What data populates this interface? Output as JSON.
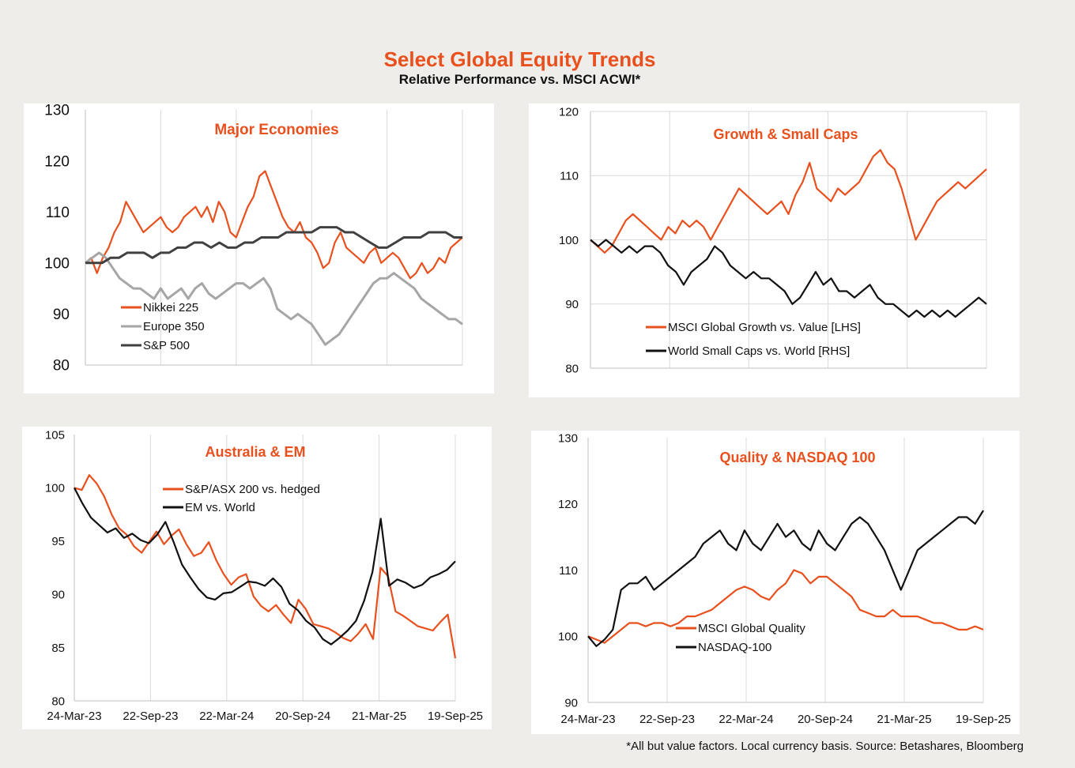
{
  "title": "Select Global Equity Trends",
  "subtitle": "Relative Performance vs. MSCI ACWI*",
  "footnote": "*All but value factors. Local currency  basis.  Source: Betashares, Bloomberg",
  "colors": {
    "orange": "#e8501e",
    "grey": "#a6a6a6",
    "dark": "#404040",
    "black": "#111111"
  },
  "chart_data": [
    {
      "type": "line",
      "title": "Major Economies",
      "ylim": [
        80,
        130
      ],
      "yticks": [
        80,
        90,
        100,
        110,
        120,
        130
      ],
      "xticks": [
        "",
        "",
        "",
        "",
        "",
        ""
      ],
      "grid": "vertical",
      "legend": "bottom-left",
      "series": [
        {
          "name": "Nikkei 225",
          "color": "orange",
          "values": [
            100,
            101,
            98,
            101,
            103,
            106,
            108,
            112,
            110,
            108,
            106,
            107,
            108,
            109,
            107,
            106,
            107,
            109,
            110,
            111,
            109,
            111,
            108,
            112,
            110,
            106,
            105,
            108,
            111,
            113,
            117,
            118,
            115,
            112,
            109,
            107,
            106,
            108,
            105,
            104,
            102,
            99,
            100,
            104,
            106,
            103,
            102,
            101,
            100,
            102,
            103,
            100,
            101,
            102,
            101,
            99,
            97,
            98,
            100,
            98,
            99,
            101,
            100,
            103,
            104,
            105
          ]
        },
        {
          "name": "Europe 350",
          "color": "grey",
          "values": [
            100,
            101,
            102,
            101,
            99,
            97,
            96,
            95,
            95,
            94,
            93,
            95,
            93,
            94,
            95,
            93,
            95,
            96,
            94,
            93,
            94,
            95,
            96,
            96,
            95,
            96,
            97,
            95,
            91,
            90,
            89,
            90,
            89,
            88,
            86,
            84,
            85,
            86,
            88,
            90,
            92,
            94,
            96,
            97,
            97,
            98,
            97,
            96,
            95,
            93,
            92,
            91,
            90,
            89,
            89,
            88
          ]
        },
        {
          "name": "S&P 500",
          "color": "dark",
          "values": [
            100,
            100,
            100,
            101,
            101,
            102,
            102,
            102,
            101,
            102,
            102,
            103,
            103,
            104,
            104,
            103,
            104,
            103,
            103,
            104,
            104,
            105,
            105,
            105,
            106,
            106,
            106,
            106,
            107,
            107,
            107,
            106,
            106,
            105,
            104,
            103,
            103,
            104,
            105,
            105,
            105,
            106,
            106,
            106,
            105,
            105
          ]
        }
      ]
    },
    {
      "type": "line",
      "title": "Growth & Small Caps",
      "ylim": [
        80,
        120
      ],
      "yticks": [
        80,
        90,
        100,
        110,
        120
      ],
      "xticks": [
        "",
        "",
        "",
        "",
        "",
        ""
      ],
      "grid": "both",
      "legend": "bottom-left",
      "series": [
        {
          "name": "MSCI Global Growth vs. Value [LHS]",
          "color": "orange",
          "values": [
            100,
            99,
            98,
            99,
            101,
            103,
            104,
            103,
            102,
            101,
            100,
            102,
            101,
            103,
            102,
            103,
            102,
            100,
            102,
            104,
            106,
            108,
            107,
            106,
            105,
            104,
            105,
            106,
            104,
            107,
            109,
            112,
            108,
            107,
            106,
            108,
            107,
            108,
            109,
            111,
            113,
            114,
            112,
            111,
            108,
            104,
            100,
            102,
            104,
            106,
            107,
            108,
            109,
            108,
            109,
            110,
            111
          ]
        },
        {
          "name": "World Small Caps vs. World [RHS]",
          "color": "black",
          "values": [
            100,
            99,
            100,
            99,
            98,
            99,
            98,
            99,
            99,
            98,
            96,
            95,
            93,
            95,
            96,
            97,
            99,
            98,
            96,
            95,
            94,
            95,
            94,
            94,
            93,
            92,
            90,
            91,
            93,
            95,
            93,
            94,
            92,
            92,
            91,
            92,
            93,
            91,
            90,
            90,
            89,
            88,
            89,
            88,
            89,
            88,
            89,
            88,
            89,
            90,
            91,
            90
          ]
        }
      ]
    },
    {
      "type": "line",
      "title": "Australia & EM",
      "ylim": [
        80,
        105
      ],
      "yticks": [
        80,
        85,
        90,
        95,
        100,
        105
      ],
      "xticks": [
        "24-Mar-23",
        "22-Sep-23",
        "22-Mar-24",
        "20-Sep-24",
        "21-Mar-25",
        "19-Sep-25"
      ],
      "grid": "vertical",
      "legend": "top-center",
      "series": [
        {
          "name": "S&P/ASX 200 vs. hedged",
          "color": "orange",
          "values": [
            100,
            99.8,
            101.2,
            100.4,
            99.2,
            97.5,
            96.2,
            95.6,
            94.5,
            93.9,
            94.9,
            95.9,
            94.7,
            95.5,
            96.1,
            94.7,
            93.6,
            93.9,
            94.9,
            93.2,
            91.9,
            90.9,
            91.6,
            91.9,
            89.8,
            88.9,
            88.4,
            89.0,
            88.1,
            87.3,
            89.5,
            88.6,
            87.2,
            87.0,
            86.8,
            86.4,
            85.9,
            85.6,
            86.3,
            87.2,
            85.8,
            92.5,
            91.7,
            88.4,
            88.0,
            87.5,
            87.0,
            86.8,
            86.6,
            87.4,
            88.1,
            84.0
          ]
        },
        {
          "name": "EM vs. World",
          "color": "black",
          "values": [
            100,
            98.5,
            97.2,
            96.5,
            95.8,
            96.2,
            95.3,
            95.7,
            95.1,
            94.8,
            95.6,
            96.8,
            94.9,
            92.8,
            91.6,
            90.5,
            89.7,
            89.5,
            90.1,
            90.2,
            90.7,
            91.2,
            91.1,
            90.8,
            91.5,
            90.7,
            89.1,
            88.5,
            87.5,
            86.9,
            85.8,
            85.3,
            85.9,
            86.6,
            87.5,
            89.4,
            92.1,
            97.1,
            90.8,
            91.4,
            91.1,
            90.6,
            90.9,
            91.6,
            91.9,
            92.3,
            93.1
          ]
        }
      ]
    },
    {
      "type": "line",
      "title": "Quality & NASDAQ 100",
      "ylim": [
        90,
        130
      ],
      "yticks": [
        90,
        100,
        110,
        120,
        130
      ],
      "xticks": [
        "24-Mar-23",
        "22-Sep-23",
        "22-Mar-24",
        "20-Sep-24",
        "21-Mar-25",
        "19-Sep-25"
      ],
      "grid": "vertical",
      "legend": "bottom-center",
      "series": [
        {
          "name": "MSCI Global Quality",
          "color": "orange",
          "values": [
            100,
            99.5,
            99,
            100,
            101,
            102,
            102,
            101.5,
            102,
            102,
            101.5,
            102,
            103,
            103,
            103.5,
            104,
            105,
            106,
            107,
            107.5,
            107,
            106,
            105.5,
            107,
            108,
            110,
            109.5,
            108,
            109,
            109,
            108,
            107,
            106,
            104,
            103.5,
            103,
            103,
            104,
            103,
            103,
            103,
            102.5,
            102,
            102,
            101.5,
            101,
            101,
            101.5,
            101
          ]
        },
        {
          "name": "NASDAQ-100",
          "color": "black",
          "values": [
            100,
            98.5,
            99.5,
            101,
            107,
            108,
            108,
            109,
            107,
            108,
            109,
            110,
            111,
            112,
            114,
            115,
            116,
            114,
            113,
            116,
            114,
            113,
            115,
            117,
            115,
            116,
            114,
            113,
            116,
            114,
            113,
            115,
            117,
            118,
            117,
            115,
            113,
            110,
            107,
            110,
            113,
            114,
            115,
            116,
            117,
            118,
            118,
            117,
            119
          ]
        }
      ]
    }
  ]
}
